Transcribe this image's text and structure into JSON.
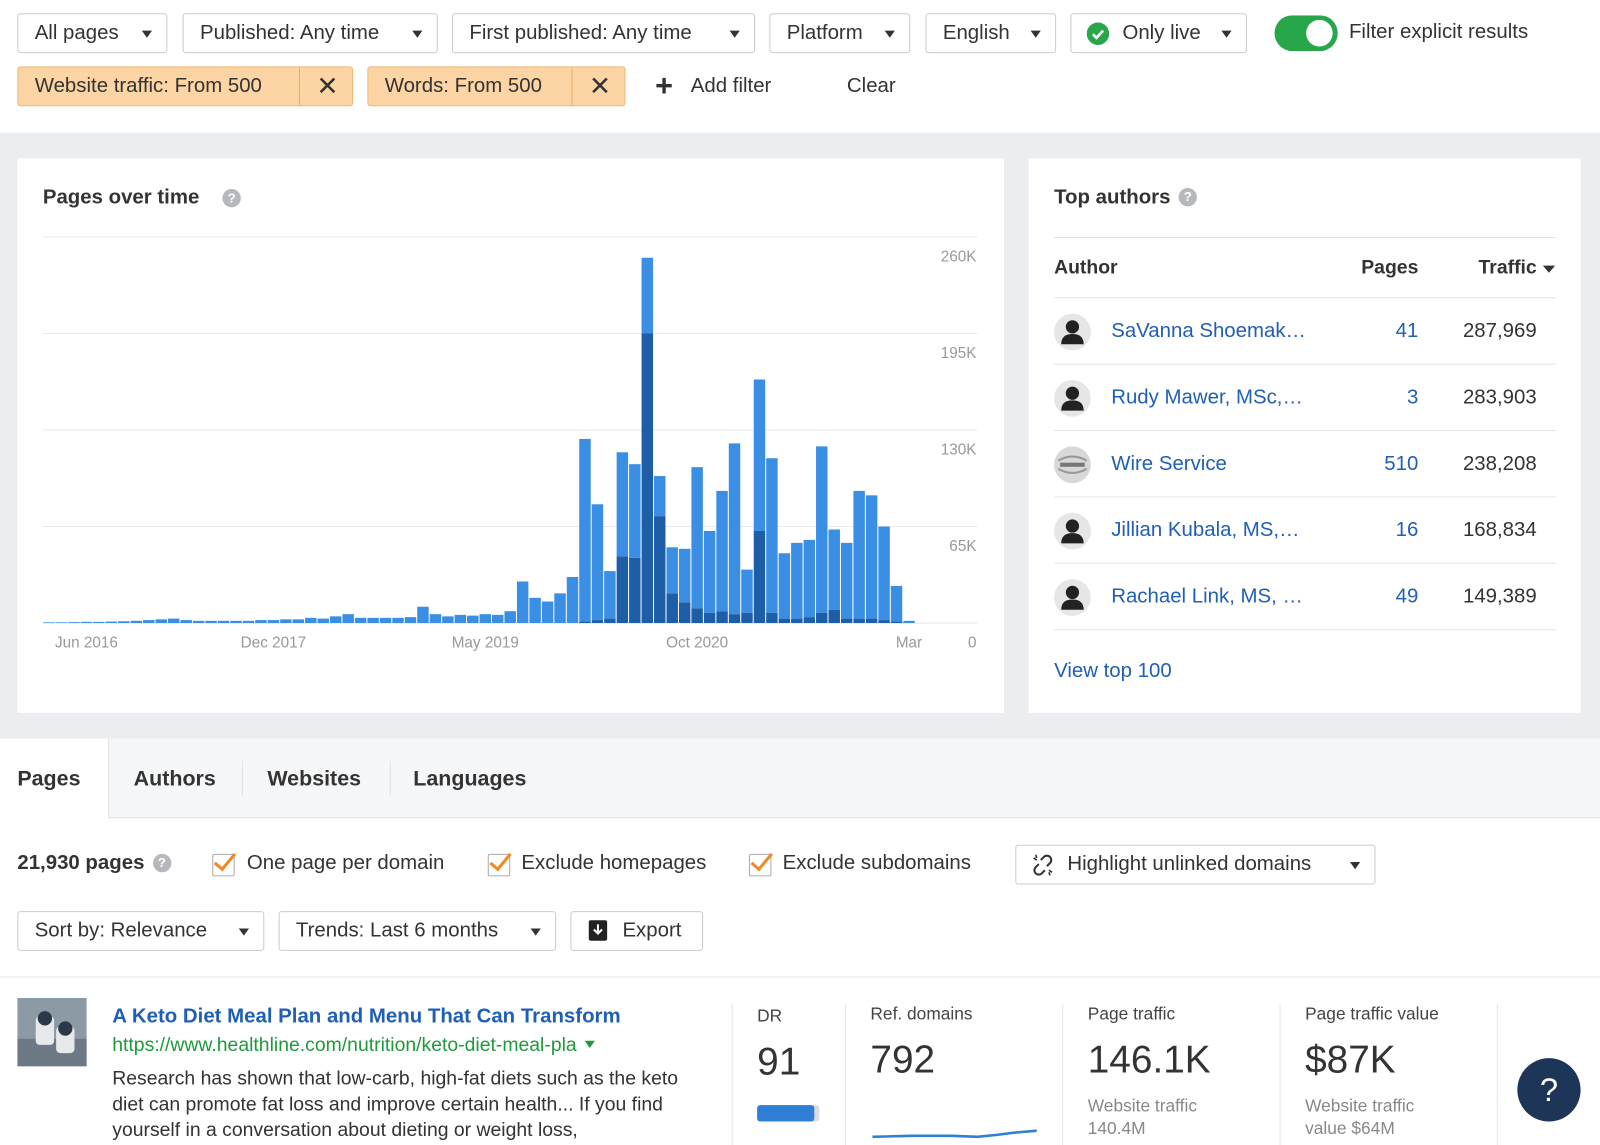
{
  "filters": {
    "dropdowns": [
      "All pages",
      "Published: Any time",
      "First published: Any time",
      "Platform",
      "English",
      "Only live"
    ],
    "toggle": "Filter explicit results",
    "active": [
      "Website traffic: From 500",
      "Words: From 500"
    ],
    "add_filter": "Add filter",
    "clear": "Clear"
  },
  "chart_data": {
    "type": "bar",
    "stacked": true,
    "title": "Pages over time",
    "categories": [
      null,
      null,
      null,
      "Jun 2016",
      null,
      null,
      null,
      null,
      null,
      null,
      null,
      null,
      null,
      null,
      null,
      null,
      null,
      null,
      "Dec 2017",
      null,
      null,
      null,
      null,
      null,
      null,
      null,
      null,
      null,
      null,
      null,
      null,
      null,
      null,
      null,
      null,
      "May 2019",
      null,
      null,
      null,
      null,
      null,
      null,
      null,
      null,
      null,
      null,
      null,
      null,
      null,
      null,
      null,
      null,
      "Oct 2020",
      null,
      null,
      null,
      null,
      null,
      null,
      null,
      null,
      null,
      null,
      null,
      null,
      null,
      null,
      null,
      null,
      "Mar",
      null,
      null,
      null,
      null,
      null
    ],
    "series": [
      {
        "color": "#1d5ea6",
        "values": [
          0,
          0,
          0,
          0,
          0,
          0,
          0,
          0,
          0,
          0,
          0,
          0,
          0,
          0,
          0,
          0,
          0,
          0,
          0,
          0,
          0,
          0,
          0,
          0,
          0,
          0,
          0,
          0,
          0,
          0,
          0,
          0,
          0,
          0,
          0,
          0,
          0,
          0,
          0,
          0,
          0,
          0,
          0,
          1000,
          2000,
          3000,
          45000,
          44000,
          195000,
          72000,
          20000,
          14000,
          10000,
          7000,
          8000,
          6000,
          7000,
          62000,
          7000,
          3000,
          3000,
          4000,
          7000,
          9000,
          3000,
          3000,
          3000,
          2000,
          1000,
          0,
          0,
          0,
          0,
          0,
          0
        ]
      },
      {
        "color": "#3a8fe4",
        "values": [
          500,
          500,
          600,
          800,
          800,
          1000,
          1200,
          1500,
          2000,
          2500,
          3000,
          2000,
          1500,
          1500,
          1500,
          1500,
          1500,
          2000,
          2000,
          2500,
          2500,
          3500,
          3000,
          4500,
          6000,
          3500,
          3500,
          3500,
          3500,
          4000,
          11000,
          6000,
          4500,
          5500,
          5000,
          6000,
          5500,
          8000,
          28000,
          17000,
          14500,
          20000,
          31000,
          123000,
          78000,
          32000,
          70000,
          63000,
          51000,
          27000,
          31000,
          36000,
          95000,
          55000,
          81000,
          115000,
          29000,
          102000,
          104000,
          44000,
          51000,
          52000,
          112000,
          54000,
          51000,
          86000,
          83000,
          63000,
          24000,
          1500,
          0,
          0,
          0,
          0,
          0
        ]
      }
    ],
    "ylim": [
      0,
      260000
    ],
    "yticks": [
      0,
      {
        "value": 65000,
        "label": "65K"
      },
      {
        "value": 130000,
        "label": "130K"
      },
      {
        "value": 195000,
        "label": "195K"
      },
      {
        "value": 260000,
        "label": "260K"
      }
    ],
    "grid": true
  },
  "top_authors": {
    "title": "Top authors",
    "columns": [
      "Author",
      "Pages",
      "Traffic"
    ],
    "rows": [
      [
        "SaVanna Shoemak…",
        "41",
        "287,969"
      ],
      [
        "Rudy Mawer, MSc,…",
        "3",
        "283,903"
      ],
      [
        "Wire Service",
        "510",
        "238,208"
      ],
      [
        "Jillian Kubala, MS,…",
        "16",
        "168,834"
      ],
      [
        "Rachael Link, MS, …",
        "49",
        "149,389"
      ]
    ],
    "link": "View top 100"
  },
  "tabs": [
    "Pages",
    "Authors",
    "Websites",
    "Languages"
  ],
  "results": {
    "count": "21,930 pages",
    "checkboxes": [
      "One page per domain",
      "Exclude homepages",
      "Exclude subdomains"
    ],
    "highlight": "Highlight unlinked domains",
    "sort": "Sort by: Relevance",
    "trends": "Trends: Last 6 months",
    "export": "Export"
  },
  "result_item": {
    "title": "A Keto Diet Meal Plan and Menu That Can Transform",
    "url": "https://www.healthline.com/nutrition/keto-diet-meal-pla",
    "snippet": "Research has shown that low-carb, high-fat diets such as the keto diet can promote fat loss and improve certain health... If you find yourself in a conversation about dieting or weight loss,",
    "metrics": [
      {
        "label": "DR",
        "value": "91"
      },
      {
        "label": "Ref. domains",
        "value": "792"
      },
      {
        "label": "Page traffic",
        "value": "146.1K",
        "sub": "Website traffic 140.4M"
      },
      {
        "label": "Page traffic value",
        "value": "$87K",
        "sub": "Website traffic value $64M"
      }
    ]
  },
  "help": "?"
}
